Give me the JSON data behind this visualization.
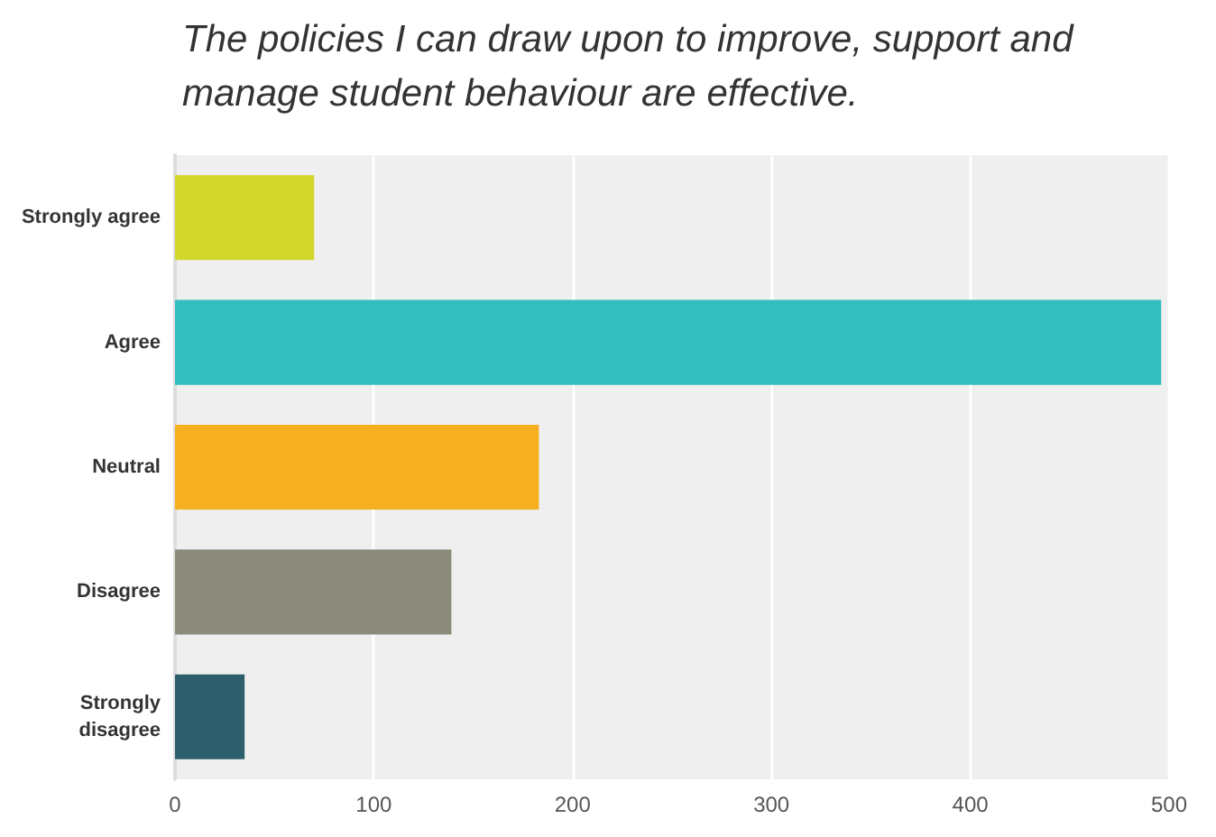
{
  "chart_data": {
    "type": "bar",
    "orientation": "horizontal",
    "title": "The policies I can draw upon to improve, support and manage student behaviour are effective.",
    "categories": [
      "Strongly agree",
      "Agree",
      "Neutral",
      "Disagree",
      "Strongly\ndisagree"
    ],
    "values": [
      70,
      496,
      183,
      139,
      35
    ],
    "colors": [
      "#d0d62a",
      "#33bdbf",
      "#f6af1f",
      "#8a8b7a",
      "#2d5e6b"
    ],
    "xlim": [
      0,
      500
    ],
    "xticks": [
      0,
      100,
      200,
      300,
      400,
      500
    ],
    "grid": "x"
  }
}
